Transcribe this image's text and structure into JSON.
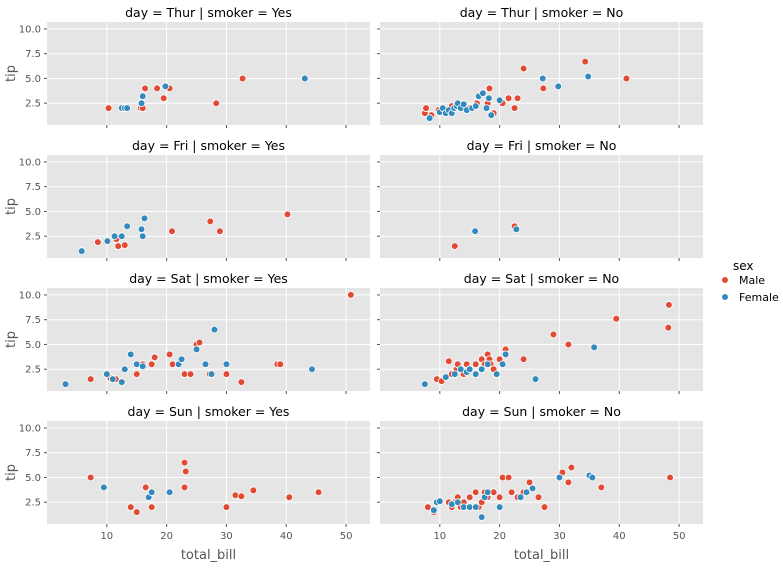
{
  "chart_data": {
    "type": "scatter",
    "x_field": "total_bill",
    "y_field": "tip",
    "xlabel": "total_bill",
    "ylabel": "tip",
    "xlim": [
      0,
      54
    ],
    "ylim": [
      0.3,
      10.7
    ],
    "xticks": [
      10,
      20,
      30,
      40,
      50
    ],
    "yticks": [
      2.5,
      5.0,
      7.5,
      10.0
    ],
    "ytick_labels": [
      "2.5",
      "5.0",
      "7.5",
      "10.0"
    ],
    "grid": true,
    "legend": {
      "title": "sex",
      "placement": "right",
      "entries": [
        {
          "name": "Male",
          "color": "#e24a33"
        },
        {
          "name": "Female",
          "color": "#348abd"
        }
      ]
    },
    "panels": [
      {
        "title": "day = Thur | smoker = Yes",
        "series": [
          {
            "name": "Male",
            "color": "#e24a33",
            "points": [
              [
                10.3,
                2.0
              ],
              [
                15.7,
                2.0
              ],
              [
                16.0,
                2.0
              ],
              [
                16.4,
                4.0
              ],
              [
                18.4,
                4.0
              ],
              [
                19.5,
                3.0
              ],
              [
                20.5,
                4.0
              ],
              [
                28.3,
                2.5
              ],
              [
                32.7,
                5.0
              ]
            ]
          },
          {
            "name": "Female",
            "color": "#348abd",
            "points": [
              [
                12.5,
                2.0
              ],
              [
                13.0,
                2.0
              ],
              [
                13.4,
                2.0
              ],
              [
                15.8,
                2.5
              ],
              [
                16.0,
                3.2
              ],
              [
                19.8,
                4.2
              ],
              [
                43.1,
                5.0
              ]
            ]
          }
        ]
      },
      {
        "title": "day = Thur | smoker = No",
        "series": [
          {
            "name": "Male",
            "color": "#e24a33",
            "points": [
              [
                7.5,
                1.5
              ],
              [
                7.7,
                2.0
              ],
              [
                8.6,
                1.3
              ],
              [
                9.8,
                1.8
              ],
              [
                12.0,
                2.2
              ],
              [
                13.4,
                2.0
              ],
              [
                15.0,
                2.0
              ],
              [
                16.2,
                2.5
              ],
              [
                17.0,
                3.5
              ],
              [
                18.0,
                2.5
              ],
              [
                18.3,
                4.0
              ],
              [
                19.0,
                1.5
              ],
              [
                20.5,
                2.5
              ],
              [
                21.5,
                3.0
              ],
              [
                22.5,
                2.0
              ],
              [
                23.0,
                3.0
              ],
              [
                24.0,
                6.0
              ],
              [
                27.3,
                4.0
              ],
              [
                34.3,
                6.7
              ],
              [
                41.2,
                5.0
              ]
            ]
          },
          {
            "name": "Female",
            "color": "#348abd",
            "points": [
              [
                8.3,
                1.0
              ],
              [
                10.0,
                1.6
              ],
              [
                10.5,
                2.0
              ],
              [
                11.0,
                1.5
              ],
              [
                11.5,
                1.8
              ],
              [
                12.0,
                1.5
              ],
              [
                12.4,
                2.0
              ],
              [
                12.8,
                2.2
              ],
              [
                13.0,
                2.5
              ],
              [
                13.5,
                2.0
              ],
              [
                14.0,
                2.4
              ],
              [
                14.5,
                1.8
              ],
              [
                15.4,
                2.0
              ],
              [
                16.0,
                2.2
              ],
              [
                16.5,
                3.2
              ],
              [
                17.2,
                3.5
              ],
              [
                17.8,
                2.0
              ],
              [
                18.2,
                3.0
              ],
              [
                18.6,
                1.3
              ],
              [
                20.0,
                2.8
              ],
              [
                27.2,
                5.0
              ],
              [
                29.8,
                4.2
              ],
              [
                34.8,
                5.2
              ]
            ]
          }
        ]
      },
      {
        "title": "day = Fri | smoker = Yes",
        "series": [
          {
            "name": "Male",
            "color": "#e24a33",
            "points": [
              [
                8.5,
                1.9
              ],
              [
                11.6,
                2.2
              ],
              [
                11.9,
                1.5
              ],
              [
                13.0,
                1.6
              ],
              [
                20.9,
                3.0
              ],
              [
                27.3,
                4.0
              ],
              [
                28.9,
                3.0
              ],
              [
                40.2,
                4.7
              ]
            ]
          },
          {
            "name": "Female",
            "color": "#348abd",
            "points": [
              [
                5.8,
                1.0
              ],
              [
                10.1,
                2.0
              ],
              [
                11.3,
                2.5
              ],
              [
                12.5,
                2.5
              ],
              [
                13.4,
                3.5
              ],
              [
                15.8,
                3.2
              ],
              [
                16.0,
                2.5
              ],
              [
                16.3,
                4.3
              ]
            ]
          }
        ]
      },
      {
        "title": "day = Fri | smoker = No",
        "series": [
          {
            "name": "Male",
            "color": "#e24a33",
            "points": [
              [
                12.5,
                1.5
              ],
              [
                22.5,
                3.5
              ]
            ]
          },
          {
            "name": "Female",
            "color": "#348abd",
            "points": [
              [
                15.9,
                3.0
              ],
              [
                22.8,
                3.2
              ]
            ]
          }
        ]
      },
      {
        "title": "day = Sat | smoker = Yes",
        "series": [
          {
            "name": "Male",
            "color": "#e24a33",
            "points": [
              [
                7.3,
                1.5
              ],
              [
                10.6,
                1.6
              ],
              [
                11.5,
                1.5
              ],
              [
                15.0,
                2.0
              ],
              [
                16.0,
                3.0
              ],
              [
                17.5,
                3.0
              ],
              [
                18.0,
                3.7
              ],
              [
                20.5,
                4.0
              ],
              [
                21.0,
                3.0
              ],
              [
                23.0,
                2.0
              ],
              [
                24.0,
                2.0
              ],
              [
                25.0,
                5.0
              ],
              [
                25.5,
                5.2
              ],
              [
                27.2,
                2.0
              ],
              [
                30.0,
                2.0
              ],
              [
                32.5,
                1.2
              ],
              [
                38.5,
                3.0
              ],
              [
                39.0,
                3.0
              ],
              [
                50.8,
                10.0
              ]
            ]
          },
          {
            "name": "Female",
            "color": "#348abd",
            "points": [
              [
                3.1,
                1.0
              ],
              [
                10.0,
                2.0
              ],
              [
                11.0,
                1.5
              ],
              [
                12.5,
                1.2
              ],
              [
                13.0,
                2.5
              ],
              [
                14.0,
                4.0
              ],
              [
                15.0,
                3.0
              ],
              [
                16.0,
                2.8
              ],
              [
                22.0,
                3.0
              ],
              [
                22.5,
                3.5
              ],
              [
                25.0,
                4.5
              ],
              [
                26.5,
                3.0
              ],
              [
                27.5,
                2.0
              ],
              [
                28.0,
                6.5
              ],
              [
                30.0,
                3.0
              ],
              [
                44.3,
                2.5
              ]
            ]
          }
        ]
      },
      {
        "title": "day = Sat | smoker = No",
        "series": [
          {
            "name": "Male",
            "color": "#e24a33",
            "points": [
              [
                9.5,
                1.5
              ],
              [
                10.3,
                1.3
              ],
              [
                11.0,
                1.7
              ],
              [
                11.5,
                3.3
              ],
              [
                12.0,
                2.0
              ],
              [
                12.8,
                2.5
              ],
              [
                13.0,
                3.0
              ],
              [
                14.0,
                2.0
              ],
              [
                14.5,
                3.0
              ],
              [
                15.0,
                2.5
              ],
              [
                16.0,
                3.0
              ],
              [
                17.0,
                3.5
              ],
              [
                17.5,
                3.0
              ],
              [
                18.0,
                4.0
              ],
              [
                18.3,
                3.5
              ],
              [
                18.5,
                3.0
              ],
              [
                19.0,
                2.5
              ],
              [
                20.0,
                3.5
              ],
              [
                21.0,
                4.5
              ],
              [
                24.0,
                3.5
              ],
              [
                29.0,
                6.0
              ],
              [
                31.5,
                5.0
              ],
              [
                39.5,
                7.6
              ],
              [
                48.3,
                9.0
              ],
              [
                48.2,
                6.7
              ]
            ]
          },
          {
            "name": "Female",
            "color": "#348abd",
            "points": [
              [
                7.5,
                1.0
              ],
              [
                11.0,
                1.7
              ],
              [
                12.5,
                2.0
              ],
              [
                13.5,
                2.5
              ],
              [
                14.5,
                2.2
              ],
              [
                15.0,
                2.5
              ],
              [
                16.0,
                2.0
              ],
              [
                17.0,
                2.5
              ],
              [
                18.0,
                3.0
              ],
              [
                19.5,
                2.0
              ],
              [
                20.5,
                3.0
              ],
              [
                21.0,
                4.0
              ],
              [
                26.0,
                1.5
              ],
              [
                35.8,
                4.7
              ]
            ]
          }
        ]
      },
      {
        "title": "day = Sun | smoker = Yes",
        "series": [
          {
            "name": "Male",
            "color": "#e24a33",
            "points": [
              [
                7.3,
                5.0
              ],
              [
                14.0,
                2.0
              ],
              [
                15.0,
                1.5
              ],
              [
                16.5,
                4.0
              ],
              [
                17.5,
                2.0
              ],
              [
                23.0,
                6.5
              ],
              [
                23.2,
                5.6
              ],
              [
                23.0,
                4.0
              ],
              [
                30.0,
                2.0
              ],
              [
                31.5,
                3.2
              ],
              [
                32.5,
                3.1
              ],
              [
                34.5,
                3.7
              ],
              [
                40.5,
                3.0
              ],
              [
                45.4,
                3.5
              ]
            ]
          },
          {
            "name": "Female",
            "color": "#348abd",
            "points": [
              [
                9.5,
                4.0
              ],
              [
                17.0,
                3.0
              ],
              [
                17.5,
                3.5
              ],
              [
                20.5,
                3.5
              ]
            ]
          }
        ]
      },
      {
        "title": "day = Sun | smoker = No",
        "series": [
          {
            "name": "Male",
            "color": "#e24a33",
            "points": [
              [
                8.0,
                2.0
              ],
              [
                9.0,
                1.5
              ],
              [
                11.5,
                2.5
              ],
              [
                12.0,
                2.0
              ],
              [
                12.5,
                2.5
              ],
              [
                13.0,
                3.0
              ],
              [
                13.5,
                2.0
              ],
              [
                14.0,
                2.5
              ],
              [
                15.0,
                3.0
              ],
              [
                16.0,
                3.5
              ],
              [
                16.5,
                2.0
              ],
              [
                17.0,
                2.5
              ],
              [
                17.5,
                3.5
              ],
              [
                18.0,
                3.0
              ],
              [
                19.0,
                3.5
              ],
              [
                20.0,
                3.0
              ],
              [
                20.5,
                5.0
              ],
              [
                21.5,
                5.0
              ],
              [
                22.0,
                3.5
              ],
              [
                23.0,
                3.0
              ],
              [
                24.0,
                3.5
              ],
              [
                25.0,
                4.5
              ],
              [
                26.5,
                3.0
              ],
              [
                27.5,
                2.0
              ],
              [
                30.5,
                5.5
              ],
              [
                31.5,
                4.5
              ],
              [
                32.0,
                6.0
              ],
              [
                37.0,
                4.0
              ],
              [
                48.5,
                5.0
              ]
            ]
          },
          {
            "name": "Female",
            "color": "#348abd",
            "points": [
              [
                9.0,
                1.7
              ],
              [
                9.5,
                2.5
              ],
              [
                10.0,
                2.6
              ],
              [
                12.0,
                2.3
              ],
              [
                13.0,
                2.5
              ],
              [
                14.0,
                2.0
              ],
              [
                15.0,
                2.0
              ],
              [
                16.0,
                2.0
              ],
              [
                17.0,
                1.0
              ],
              [
                17.5,
                3.0
              ],
              [
                18.0,
                3.5
              ],
              [
                20.0,
                2.0
              ],
              [
                23.5,
                3.0
              ],
              [
                24.5,
                3.5
              ],
              [
                25.5,
                3.9
              ],
              [
                30.0,
                5.0
              ],
              [
                35.0,
                5.2
              ],
              [
                35.5,
                5.0
              ]
            ]
          }
        ]
      }
    ]
  }
}
